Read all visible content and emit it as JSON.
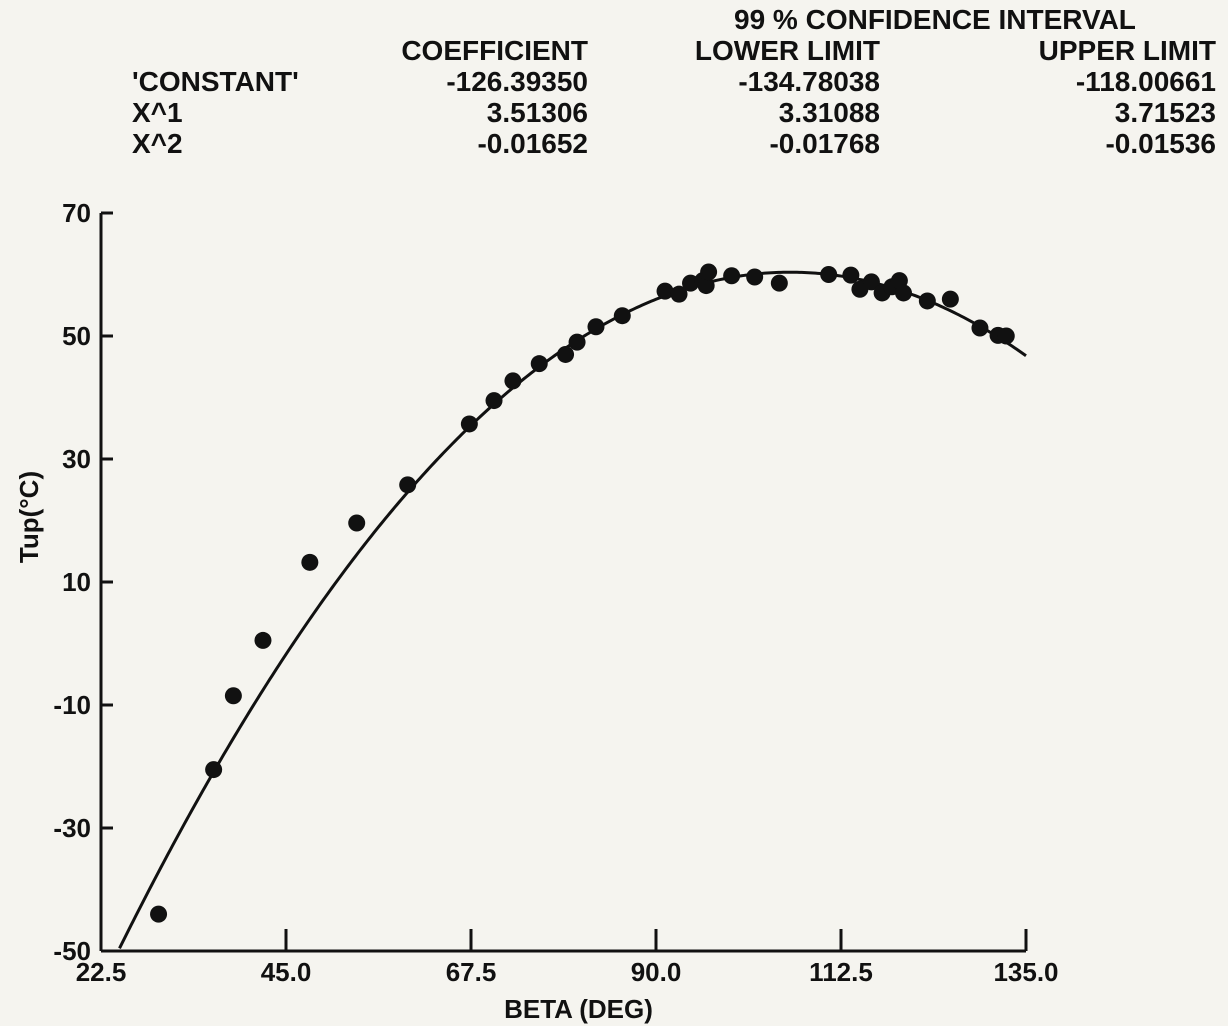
{
  "table": {
    "group_header": "99 % CONFIDENCE INTERVAL",
    "columns": [
      "COEFFICIENT",
      "LOWER LIMIT",
      "UPPER LIMIT"
    ],
    "rows": [
      {
        "term": "'CONSTANT'",
        "coefficient": "-126.39350",
        "lower": "-134.78038",
        "upper": "-118.00661"
      },
      {
        "term": "X^1",
        "coefficient": "3.51306",
        "lower": "3.31088",
        "upper": "3.71523"
      },
      {
        "term": "X^2",
        "coefficient": "-0.01652",
        "lower": "-0.01768",
        "upper": "-0.01536"
      }
    ]
  },
  "chart_data": {
    "type": "scatter",
    "title": "",
    "xlabel": "BETA (DEG)",
    "ylabel": "Tup(°C)",
    "xlim": [
      22.5,
      135.0
    ],
    "ylim": [
      -50,
      70
    ],
    "x_ticks": [
      22.5,
      45.0,
      67.5,
      90.0,
      112.5,
      135.0
    ],
    "x_tick_labels": [
      "22.5",
      "45.0",
      "67.5",
      "90.0",
      "112.5",
      "135.0"
    ],
    "y_ticks": [
      70,
      50,
      30,
      10,
      -10,
      -30,
      -50
    ],
    "y_tick_labels": [
      "70",
      "50",
      "30",
      "10",
      "-10",
      "-30",
      "-50"
    ],
    "grid": false,
    "series": [
      {
        "kind": "points",
        "points": [
          [
            29.5,
            -44.0
          ],
          [
            36.2,
            -20.5
          ],
          [
            38.6,
            -8.5
          ],
          [
            42.2,
            0.5
          ],
          [
            47.9,
            13.2
          ],
          [
            53.6,
            19.6
          ],
          [
            59.8,
            25.8
          ],
          [
            67.3,
            35.7
          ],
          [
            70.3,
            39.5
          ],
          [
            72.6,
            42.7
          ],
          [
            75.8,
            45.5
          ],
          [
            79.0,
            47.0
          ],
          [
            80.4,
            49.0
          ],
          [
            82.7,
            51.5
          ],
          [
            85.9,
            53.3
          ],
          [
            91.1,
            57.3
          ],
          [
            92.8,
            56.8
          ],
          [
            94.2,
            58.6
          ],
          [
            95.7,
            59.0
          ],
          [
            96.1,
            58.2
          ],
          [
            96.4,
            60.4
          ],
          [
            99.2,
            59.8
          ],
          [
            102.0,
            59.6
          ],
          [
            105.0,
            58.6
          ],
          [
            111.0,
            60.0
          ],
          [
            113.7,
            59.9
          ],
          [
            114.8,
            57.6
          ],
          [
            116.2,
            58.8
          ],
          [
            117.5,
            57.0
          ],
          [
            118.7,
            58.0
          ],
          [
            119.6,
            59.0
          ],
          [
            120.1,
            57.0
          ],
          [
            123.0,
            55.7
          ],
          [
            125.8,
            56.0
          ],
          [
            129.4,
            51.3
          ],
          [
            131.6,
            50.1
          ],
          [
            132.6,
            50.0
          ]
        ]
      },
      {
        "kind": "fit",
        "equation": "y = -126.39350 + 3.51306 x - 0.01652 x^2",
        "coefficients": [
          -126.3935,
          3.51306,
          -0.01652
        ],
        "x_range": [
          22.5,
          135.0
        ]
      }
    ]
  }
}
